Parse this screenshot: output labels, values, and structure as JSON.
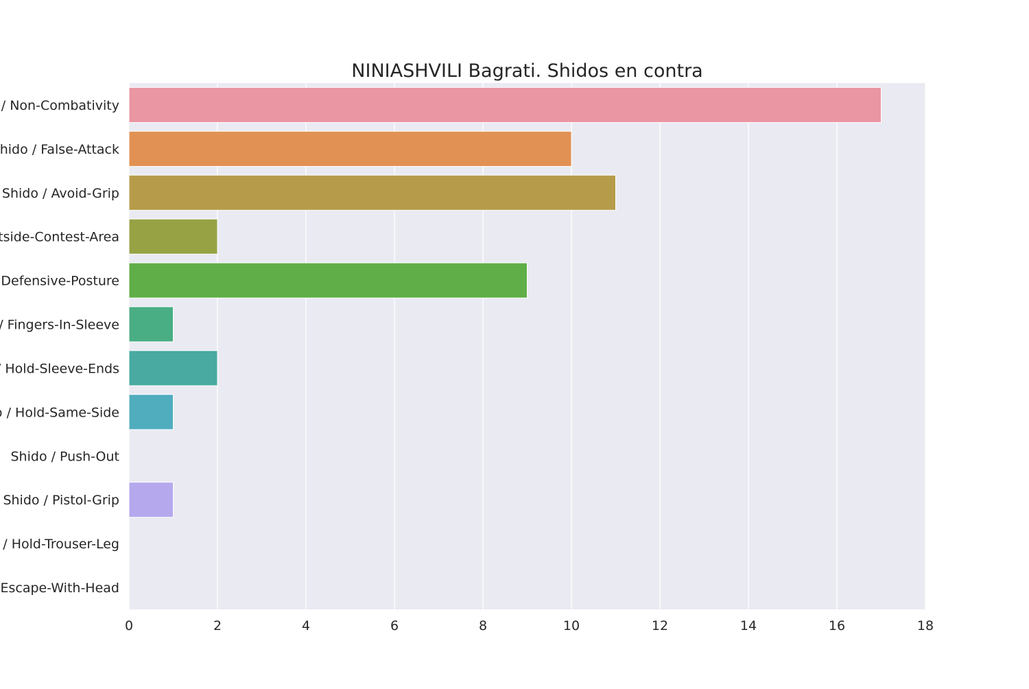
{
  "chart_data": {
    "type": "bar",
    "orientation": "horizontal",
    "title": "NINIASHVILI Bagrati. Shidos en contra",
    "xlabel": "",
    "ylabel": "",
    "xlim": [
      0,
      18
    ],
    "xticks": [
      0,
      2,
      4,
      6,
      8,
      10,
      12,
      14,
      16,
      18
    ],
    "grid": true,
    "categories": [
      "Shido / Non-Combativity",
      "Shido / False-Attack",
      "Shido / Avoid-Grip",
      "Shido / Outside-Contest-Area",
      "Shido / Defensive-Posture",
      "Shido / Fingers-In-Sleeve",
      "Shido / Hold-Sleeve-Ends",
      "Shido / Hold-Same-Side",
      "Shido / Push-Out",
      "Shido / Pistol-Grip",
      "Shido / Hold-Trouser-Leg",
      "Shido / Escape-With-Head"
    ],
    "values": [
      17,
      10,
      11,
      2,
      9,
      1,
      2,
      1,
      0,
      1,
      0,
      0
    ],
    "colors": [
      "#ea96a3",
      "#e19153",
      "#b69c4a",
      "#97a245",
      "#60ae47",
      "#4aae84",
      "#48aaa0",
      "#4fadbe",
      "#6caee5",
      "#b5a8ed",
      "#e099e6",
      "#ea98c9"
    ],
    "background_color": "#eaeaf2",
    "grid_color": "#ffffff"
  }
}
